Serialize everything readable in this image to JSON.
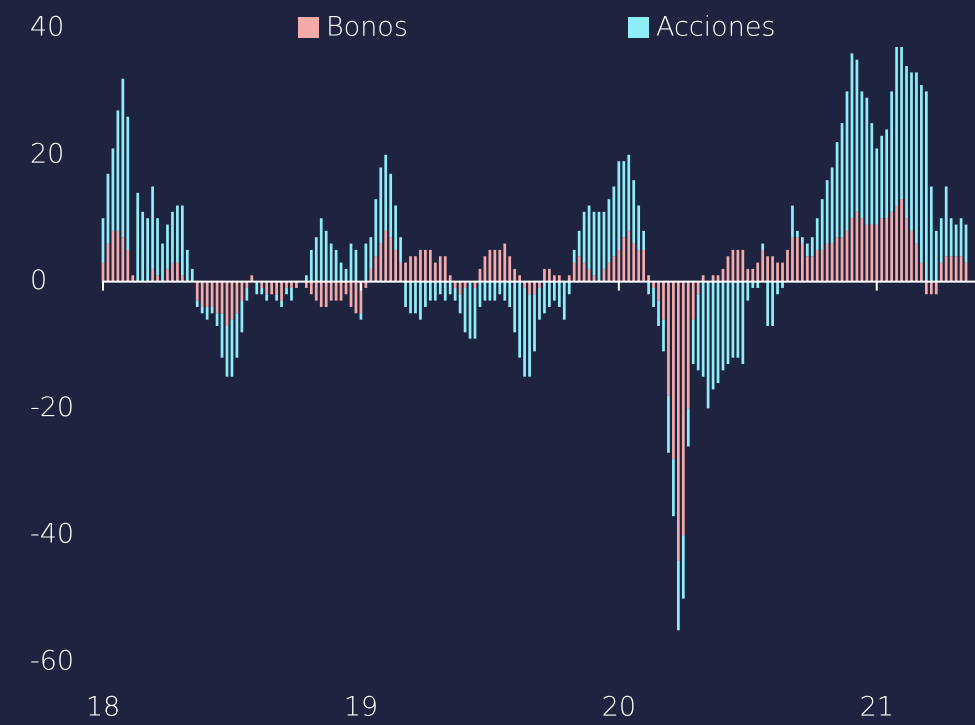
{
  "chart_data": {
    "type": "bar",
    "stacked": true,
    "categories": [
      "18",
      null,
      null,
      null,
      null,
      null,
      null,
      null,
      null,
      null,
      null,
      null,
      null,
      null,
      null,
      null,
      null,
      null,
      null,
      null,
      null,
      null,
      null,
      null,
      null,
      null,
      null,
      null,
      null,
      null,
      null,
      null,
      null,
      null,
      null,
      null,
      null,
      null,
      null,
      null,
      null,
      null,
      null,
      null,
      null,
      null,
      null,
      null,
      null,
      null,
      null,
      null,
      "19",
      null,
      null,
      null,
      null,
      null,
      null,
      null,
      null,
      null,
      null,
      null,
      null,
      null,
      null,
      null,
      null,
      null,
      null,
      null,
      null,
      null,
      null,
      null,
      null,
      null,
      null,
      null,
      null,
      null,
      null,
      null,
      null,
      null,
      null,
      null,
      null,
      null,
      null,
      null,
      null,
      null,
      null,
      null,
      null,
      null,
      null,
      null,
      null,
      null,
      null,
      null,
      "20",
      null,
      null,
      null,
      null,
      null,
      null,
      null,
      null,
      null,
      null,
      null,
      null,
      null,
      null,
      null,
      null,
      null,
      null,
      null,
      null,
      null,
      null,
      null,
      null,
      null,
      null,
      null,
      null,
      null,
      null,
      null,
      null,
      null,
      null,
      null,
      null,
      null,
      null,
      null,
      null,
      null,
      null,
      null,
      null,
      null,
      null,
      null,
      null,
      null,
      null,
      null,
      "21",
      null,
      null,
      null,
      null,
      null,
      null,
      null,
      null,
      null,
      null,
      null,
      null,
      null,
      null,
      null,
      null,
      null,
      null
    ],
    "series": [
      {
        "name": "Bonos",
        "color": "#f4aaa9",
        "values": [
          3,
          6,
          8,
          8,
          7,
          5,
          1,
          0,
          0,
          0,
          2,
          1,
          0,
          2,
          3,
          3,
          1,
          0,
          0,
          -3,
          -4,
          -4,
          -4,
          -5,
          -5,
          -7,
          -6,
          -5,
          -3,
          -1,
          1,
          0,
          -1,
          -2,
          -2,
          -2,
          -3,
          -1,
          -1,
          -1,
          0,
          -1,
          -2,
          -3,
          -4,
          -4,
          -3,
          -3,
          -3,
          -2,
          -4,
          -5,
          -5,
          -1,
          2,
          4,
          6,
          8,
          7,
          5,
          3,
          3,
          4,
          4,
          5,
          5,
          5,
          3,
          4,
          4,
          1,
          -1,
          -2,
          -1,
          0,
          -1,
          2,
          4,
          5,
          5,
          5,
          6,
          4,
          2,
          1,
          -1,
          -2,
          -2,
          -1,
          2,
          2,
          1,
          1,
          0,
          1,
          3,
          4,
          3,
          2,
          1,
          0,
          2,
          3,
          4,
          5,
          7,
          8,
          6,
          5,
          5,
          1,
          -1,
          -3,
          -6,
          -18,
          -28,
          -44,
          -40,
          -20,
          -6,
          -2,
          1,
          0,
          1,
          1,
          2,
          4,
          5,
          5,
          5,
          2,
          2,
          3,
          5,
          4,
          4,
          3,
          3,
          5,
          7,
          7,
          6,
          4,
          4,
          5,
          5,
          6,
          6,
          7,
          7,
          8,
          10,
          11,
          10,
          9,
          9,
          9,
          10,
          10,
          11,
          12,
          13,
          10,
          8,
          6,
          3,
          -2,
          -2,
          -2,
          3,
          4,
          4,
          4,
          4,
          3
        ]
      },
      {
        "name": "Acciones",
        "color": "#8eedf5",
        "values": [
          7,
          11,
          13,
          19,
          25,
          21,
          0,
          14,
          11,
          10,
          13,
          9,
          6,
          7,
          8,
          9,
          11,
          5,
          2,
          -1,
          -1,
          -2,
          -1,
          -2,
          -7,
          -8,
          -9,
          -7,
          -5,
          -2,
          0,
          -2,
          -1,
          -1,
          0,
          -1,
          -1,
          -1,
          -2,
          0,
          0,
          1,
          5,
          7,
          10,
          8,
          6,
          5,
          3,
          2,
          6,
          5,
          -1,
          6,
          5,
          9,
          12,
          12,
          10,
          7,
          4,
          -4,
          -5,
          -5,
          -6,
          -4,
          -3,
          -3,
          -2,
          -3,
          -2,
          -2,
          -3,
          -7,
          -9,
          -8,
          -4,
          -3,
          -3,
          -3,
          -2,
          -3,
          -4,
          -8,
          -12,
          -14,
          -13,
          -9,
          -5,
          -5,
          -4,
          -3,
          -4,
          -6,
          -2,
          2,
          4,
          8,
          10,
          10,
          11,
          9,
          10,
          11,
          14,
          12,
          12,
          10,
          7,
          3,
          -2,
          -3,
          -4,
          -5,
          -9,
          -9,
          -11,
          -10,
          -6,
          -7,
          -12,
          -15,
          -20,
          -17,
          -16,
          -14,
          -13,
          -12,
          -12,
          -13,
          -3,
          -1,
          -1,
          1,
          -7,
          -7,
          -2,
          -1,
          0,
          5,
          1,
          1,
          2,
          3,
          5,
          8,
          10,
          12,
          15,
          18,
          22,
          26,
          24,
          20,
          20,
          16,
          12,
          13,
          14,
          19,
          25,
          24,
          24,
          25,
          27,
          28,
          30,
          15,
          8,
          7,
          11,
          6,
          5,
          6,
          6
        ]
      }
    ],
    "ylim": [
      -60,
      40
    ],
    "yticks": [
      -60,
      -40,
      -20,
      0,
      20,
      40
    ],
    "grid": false,
    "legend": "top"
  }
}
